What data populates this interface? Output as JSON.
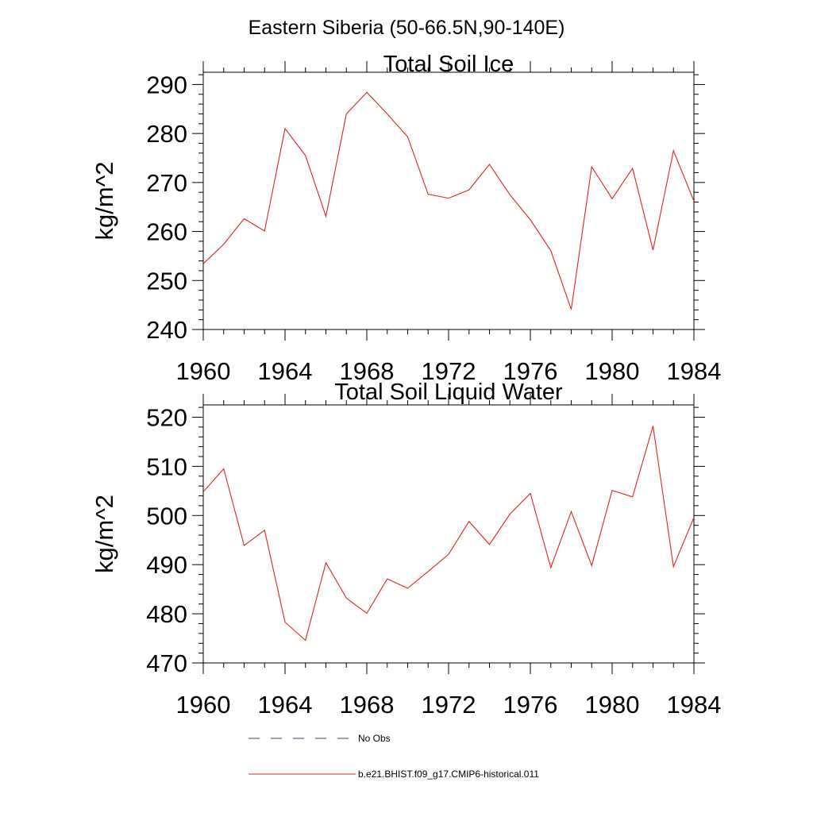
{
  "figure": {
    "main_title": "Eastern Siberia (50-66.5N,90-140E)"
  },
  "legend": [
    {
      "label": "No Obs",
      "color": "#3b4a6b",
      "style": "dashed"
    },
    {
      "label": "b.e21.BHIST.f09_g17.CMIP6-historical.011",
      "color": "#e0241c",
      "style": "solid"
    }
  ],
  "chart_data": [
    {
      "type": "line",
      "title": "Total Soil Ice",
      "xlabel": "",
      "ylabel": "kg/m^2",
      "xlim": [
        1960,
        1984
      ],
      "ylim": [
        240,
        292.5
      ],
      "xticks": [
        1960,
        1964,
        1968,
        1972,
        1976,
        1980,
        1984
      ],
      "yticks": [
        240,
        250,
        260,
        270,
        280,
        290
      ],
      "grid": false,
      "series": [
        {
          "color": "#e0241c",
          "x": [
            1960,
            1961,
            1962,
            1963,
            1964,
            1965,
            1966,
            1967,
            1968,
            1969,
            1970,
            1971,
            1972,
            1973,
            1974,
            1975,
            1976,
            1977,
            1978,
            1979,
            1980,
            1981,
            1982,
            1983,
            1984
          ],
          "values": [
            253.4,
            257.4,
            262.6,
            260.1,
            281.0,
            275.5,
            263.1,
            284.0,
            288.4,
            284.0,
            279.3,
            267.6,
            266.8,
            268.5,
            273.7,
            267.5,
            262.4,
            256.1,
            244.1,
            273.2,
            266.7,
            272.9,
            256.2,
            276.5,
            266.2
          ]
        }
      ]
    },
    {
      "type": "line",
      "title": "Total Soil Liquid Water",
      "xlabel": "",
      "ylabel": "kg/m^2",
      "xlim": [
        1960,
        1984
      ],
      "ylim": [
        470,
        522.5
      ],
      "xticks": [
        1960,
        1964,
        1968,
        1972,
        1976,
        1980,
        1984
      ],
      "yticks": [
        470,
        480,
        490,
        500,
        510,
        520
      ],
      "grid": false,
      "series": [
        {
          "color": "#e0241c",
          "x": [
            1960,
            1961,
            1962,
            1963,
            1964,
            1965,
            1966,
            1967,
            1968,
            1969,
            1970,
            1971,
            1972,
            1973,
            1974,
            1975,
            1976,
            1977,
            1978,
            1979,
            1980,
            1981,
            1982,
            1983,
            1984
          ],
          "values": [
            504.8,
            509.5,
            493.9,
            497.0,
            478.3,
            474.6,
            490.4,
            483.2,
            480.1,
            487.1,
            485.2,
            488.6,
            492.1,
            498.8,
            494.1,
            500.3,
            504.5,
            489.4,
            500.8,
            489.8,
            505.1,
            503.8,
            518.2,
            489.6,
            499.6
          ]
        }
      ]
    }
  ]
}
